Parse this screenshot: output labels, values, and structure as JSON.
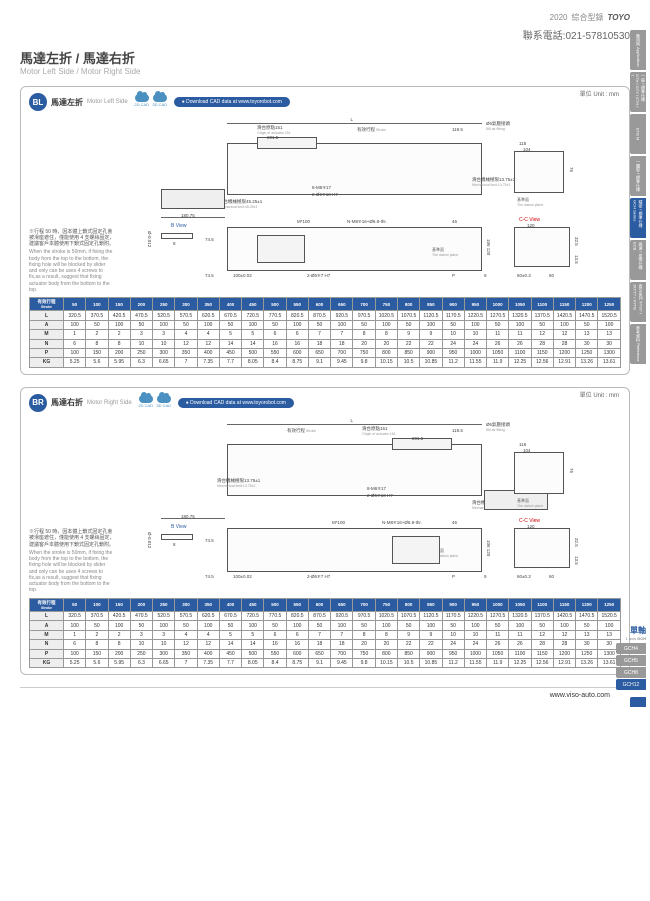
{
  "header": {
    "year": "2020",
    "title_cn": "綜合型錄",
    "logo": "TOYO"
  },
  "contact": "聯系電話:021-57810530",
  "main_title": "馬達左折 / 馬達右折",
  "main_subtitle": "Motor Left Side / Motor Right Side",
  "footer_url": "www.viso-auto.com",
  "side_tabs": [
    {
      "label": "應用例 Application"
    },
    {
      "label": "一般 / 標準仕様 GTH / GTY / ETH / T"
    },
    {
      "label": "ETB M"
    },
    {
      "label": "一體型 / 標準仕様"
    },
    {
      "label": "精密 / 標準仕様 GCH Series",
      "active": true
    },
    {
      "label": "高速 / 皮帶仕様 ECB"
    },
    {
      "label": "直交系列 XYG7 / JXYT7 / XYTB"
    },
    {
      "label": "參考資料 Reference"
    }
  ],
  "bottom_tabs": {
    "series_main": "單軸",
    "series_sub": "1 axis",
    "series_code": "GCH",
    "items": [
      {
        "label": "GCH4"
      },
      {
        "label": "GCH5"
      },
      {
        "label": "GCH8"
      },
      {
        "label": "GCH12",
        "active": true
      }
    ]
  },
  "sections": [
    {
      "badge": "BL",
      "title_cn": "馬達左折",
      "title_en": "Motor Left Side",
      "unit": "單位 Unit : mm",
      "download": "Download CAD data at www.toyorobot.com",
      "cad_labels": [
        "2D CAD",
        "3D CAD"
      ],
      "note_cn": "※行程 50 時，因本體上鎖式固定孔會被滑座遮住，僅能使用 4 支螺絲固定，建議客戶本體使用下鎖式固定孔鎖附。",
      "note_en": "When the stroke is 50mm, if fixing the body from the top to the bottom, the fixing hole will be blocked by slider and only can be uses 4 screws to fix,as a result, suggest that fixing actuator body from the bottom to the top.",
      "diagram_labels": {
        "origin": "滑台原點151",
        "origin_en": "Origin of actuator:151",
        "stroke": "有效行程",
        "stroke_en": "Stroke",
        "air": "Ø6氣壓接頭",
        "air_en": "Ø6 air fitting",
        "mech_r": "滑台機械極限13.75±1",
        "mech_r_en": "Mechanical limit:13.75±1",
        "mech_l": "滑台機械極限45.25±1",
        "mech_l_en": "Mechanical limit:45.25±1",
        "datum": "基準面",
        "datum_en": "The datum plane",
        "cc": "C-C View",
        "bview": "B View",
        "L": "L",
        "d201": "201.5",
        "d119": "119.5",
        "d118": "118",
        "d104": "104",
        "d76": "76",
        "d180": "180.75",
        "d74": "74.5",
        "d46": "46",
        "d9": "9",
        "h8m6": "8-M6∓17",
        "h2d6": "2-Ø6∓10 H7",
        "m100": "M*100",
        "nm8": "N-M8∓16+Ø6.8-thr.",
        "d2d6f7": "2-Ø6∓7 H7",
        "d120": "120",
        "d60": "60±0.3",
        "d325": "32.5",
        "d135": "13.5",
        "d106": "106",
        "d100": "100±0.02",
        "P": "P",
        "d0012": "Ø-0.012",
        "d8": "8"
      }
    },
    {
      "badge": "BR",
      "title_cn": "馬達右折",
      "title_en": "Motor Right Side",
      "unit": "單位 Unit : mm",
      "download": "Download CAD data at www.toyorobot.com",
      "cad_labels": [
        "2D CAD",
        "3D CAD"
      ],
      "note_cn": "※行程 50 時，因本體上鎖式固定孔會被滑座遮住，僅能使用 4 支螺絲固定，建議客戶本體使用下鎖式固定孔鎖附。",
      "note_en": "When the stroke is 50mm, if fixing the body from the top to the bottom, the fixing hole will be blocked by slider and only can be uses 4 screws to fix,as a result, suggest that fixing actuator body from the bottom to the top.",
      "diagram_labels": {
        "origin": "滑台原點151",
        "origin_en": "Origin of actuator:151",
        "stroke": "有效行程",
        "stroke_en": "Stroke",
        "air": "Ø6氣壓接頭",
        "air_en": "Ø6 air fitting",
        "mech_r": "滑台機械極限13.75±1",
        "mech_r_en": "Mechanical limit:13.75±1",
        "mech_l": "滑台機械極限45.25±1",
        "mech_l_en": "Mechanical limit:45.25±1",
        "datum": "基準面",
        "datum_en": "The datum plane",
        "cc": "C-C View",
        "bview": "B View",
        "L": "L",
        "d201": "201.5",
        "d119": "119.5",
        "d118": "118",
        "d104": "104",
        "d76": "76",
        "d180": "180.75",
        "d74": "74.5",
        "d46": "46",
        "d9": "9",
        "h8m6": "8-M6∓17",
        "h2d6": "2-Ø6∓10 H7",
        "m100": "M*100",
        "nm8": "N-M8∓16+Ø6.8-thr.",
        "d2d6f7": "2-Ø6∓7 H7",
        "d120": "120",
        "d60": "60±0.3",
        "d325": "32.5",
        "d135": "13.5",
        "d106": "106",
        "d100": "100±0.02",
        "P": "P",
        "d0012": "Ø-0.012",
        "d8": "8"
      }
    }
  ],
  "spec_table": {
    "stroke_head_cn": "有效行程",
    "stroke_head_en": "Stroke",
    "strokes": [
      "50",
      "100",
      "150",
      "200",
      "250",
      "300",
      "350",
      "400",
      "450",
      "500",
      "550",
      "600",
      "650",
      "700",
      "750",
      "800",
      "850",
      "900",
      "950",
      "1000",
      "1050",
      "1100",
      "1150",
      "1200",
      "1250"
    ],
    "rows": [
      {
        "label": "L",
        "values": [
          "320.5",
          "370.5",
          "420.5",
          "470.5",
          "520.5",
          "570.5",
          "620.5",
          "670.5",
          "720.5",
          "770.5",
          "820.5",
          "870.5",
          "920.5",
          "970.5",
          "1020.5",
          "1070.5",
          "1120.5",
          "1170.5",
          "1220.5",
          "1270.5",
          "1320.5",
          "1370.5",
          "1420.5",
          "1470.5",
          "1520.5"
        ]
      },
      {
        "label": "A",
        "values": [
          "100",
          "50",
          "100",
          "50",
          "100",
          "50",
          "100",
          "50",
          "100",
          "50",
          "100",
          "50",
          "100",
          "50",
          "100",
          "50",
          "100",
          "50",
          "100",
          "50",
          "100",
          "50",
          "100",
          "50",
          "100"
        ]
      },
      {
        "label": "M",
        "values": [
          "1",
          "2",
          "2",
          "3",
          "3",
          "4",
          "4",
          "5",
          "5",
          "6",
          "6",
          "7",
          "7",
          "8",
          "8",
          "9",
          "9",
          "10",
          "10",
          "11",
          "11",
          "12",
          "12",
          "13",
          "13"
        ]
      },
      {
        "label": "N",
        "values": [
          "6",
          "8",
          "8",
          "10",
          "10",
          "12",
          "12",
          "14",
          "14",
          "16",
          "16",
          "18",
          "18",
          "20",
          "20",
          "22",
          "22",
          "24",
          "24",
          "26",
          "26",
          "28",
          "28",
          "30",
          "30"
        ]
      },
      {
        "label": "P",
        "values": [
          "100",
          "150",
          "200",
          "250",
          "300",
          "350",
          "400",
          "450",
          "500",
          "550",
          "600",
          "650",
          "700",
          "750",
          "800",
          "850",
          "900",
          "950",
          "1000",
          "1050",
          "1100",
          "1150",
          "1200",
          "1250",
          "1300"
        ]
      },
      {
        "label": "KG",
        "values": [
          "5.25",
          "5.6",
          "5.95",
          "6.3",
          "6.65",
          "7",
          "7.35",
          "7.7",
          "8.05",
          "8.4",
          "8.75",
          "9.1",
          "9.45",
          "9.8",
          "10.15",
          "10.5",
          "10.85",
          "11.2",
          "11.55",
          "11.9",
          "12.25",
          "12.56",
          "12.91",
          "13.26",
          "13.61"
        ]
      }
    ]
  },
  "colors": {
    "brand": "#2b5ba0",
    "accent": "#4a90c0",
    "gray": "#999999",
    "text": "#333333"
  }
}
